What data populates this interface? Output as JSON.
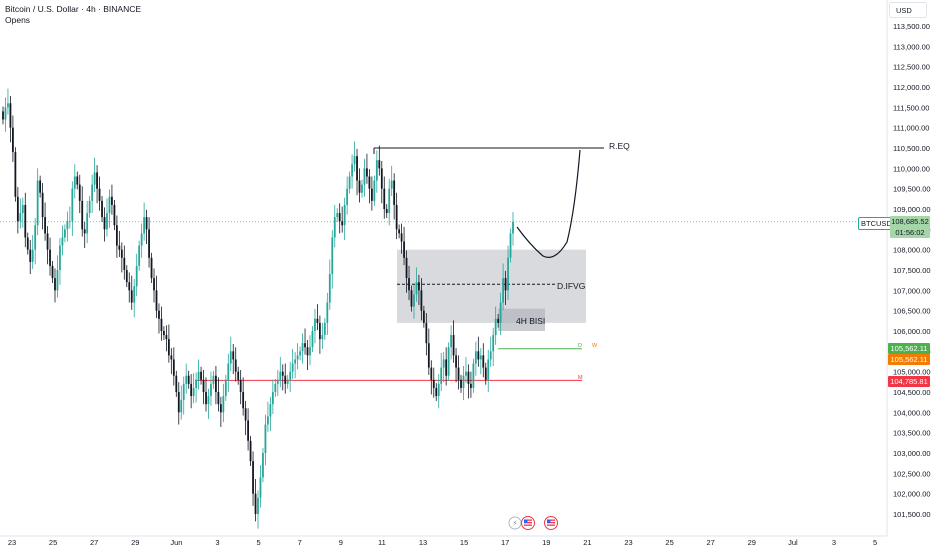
{
  "legend": {
    "title": "Bitcoin / U.S. Dollar · 4h · BINANCE",
    "subtitle": "Opens"
  },
  "axis": {
    "currency": "USD",
    "price_ticks": [
      "113,500.00",
      "113,000.00",
      "112,500.00",
      "112,000.00",
      "111,500.00",
      "111,000.00",
      "110,500.00",
      "110,000.00",
      "109,500.00",
      "109,000.00",
      "108,500.00",
      "108,000.00",
      "107,500.00",
      "107,000.00",
      "106,500.00",
      "106,000.00",
      "105,500.00",
      "105,000.00",
      "104,500.00",
      "104,000.00",
      "103,500.00",
      "103,000.00",
      "102,500.00",
      "102,000.00",
      "101,500.00"
    ],
    "date_ticks": [
      "23",
      "25",
      "27",
      "29",
      "Jun",
      "3",
      "5",
      "7",
      "9",
      "11",
      "13",
      "15",
      "17",
      "19",
      "21",
      "23",
      "25",
      "27",
      "29",
      "Jul",
      "3",
      "5"
    ]
  },
  "price_labels": {
    "ticker": "BTCUSD",
    "last_price": "108,685.52",
    "countdown": "01:56:02",
    "green_level": "105,562.11",
    "orange_level": "105,562.11",
    "red_level": "104,785.81"
  },
  "colors": {
    "up": "#26a69a",
    "down": "#131722",
    "zone_fill": "#b2b5be",
    "green_line": "#4caf50",
    "orange": "#f57c00",
    "red": "#f23645"
  },
  "annotations": {
    "req_label": "R.EQ",
    "dfvg_label": "D.IFVG",
    "bisi_label": "4H BISI",
    "d_label": "D",
    "w_label": "W",
    "m_label": "M"
  },
  "chart_data": {
    "type": "candlestick",
    "title": "Bitcoin / U.S. Dollar · 4h · BINANCE",
    "ylabel": "USD",
    "ylim": [
      101300,
      113800
    ],
    "x_ticks": [
      "23",
      "25",
      "27",
      "29",
      "Jun",
      "3",
      "5",
      "7",
      "9",
      "11",
      "13",
      "15",
      "17",
      "19",
      "21",
      "23",
      "25",
      "27",
      "29",
      "Jul",
      "3",
      "5"
    ],
    "levels": {
      "req": 110500,
      "dfvg_zone": [
        106200,
        108000
      ],
      "dfvg_mid": 107150,
      "bisi_zone": [
        106000,
        106550
      ],
      "daily_open": 105562.11,
      "monthly_open": 104785.81,
      "last_price": 108685.52
    },
    "closes": [
      111200,
      111500,
      111600,
      111000,
      110400,
      109300,
      108700,
      108900,
      109100,
      108300,
      108000,
      107700,
      108000,
      108600,
      109700,
      109400,
      108800,
      108400,
      108000,
      107600,
      107300,
      107000,
      107500,
      108100,
      108300,
      108500,
      108700,
      108700,
      109500,
      109800,
      109600,
      109200,
      108500,
      108400,
      108900,
      109200,
      109600,
      109900,
      109500,
      109200,
      108800,
      108500,
      108900,
      109300,
      109100,
      108600,
      108100,
      108000,
      107800,
      107500,
      107200,
      107000,
      106700,
      107100,
      107600,
      108100,
      108400,
      108800,
      108500,
      107800,
      107300,
      107000,
      106500,
      106300,
      106000,
      105900,
      105800,
      105400,
      105300,
      104900,
      104500,
      104000,
      104300,
      104700,
      104900,
      104700,
      104400,
      104600,
      104800,
      105000,
      104800,
      104500,
      104200,
      104400,
      104700,
      104900,
      104500,
      104200,
      104000,
      104400,
      104800,
      105200,
      105500,
      105300,
      105000,
      104800,
      104500,
      104100,
      103800,
      103300,
      102800,
      102000,
      101500,
      101900,
      102400,
      103000,
      103700,
      103900,
      104200,
      104500,
      104700,
      104800,
      105000,
      104900,
      104700,
      104800,
      105000,
      105200,
      105300,
      105400,
      105500,
      105700,
      105600,
      105400,
      105600,
      106000,
      106300,
      106200,
      105800,
      105900,
      106200,
      106700,
      107400,
      108300,
      108800,
      108900,
      108700,
      108600,
      109100,
      109500,
      109800,
      110100,
      110300,
      109700,
      109400,
      109600,
      110000,
      109800,
      109500,
      109200,
      109700,
      110200,
      110000,
      109500,
      109000,
      108900,
      109500,
      109700,
      109100,
      108500,
      108400,
      108200,
      107800,
      107300,
      107000,
      106600,
      106900,
      107200,
      107000,
      106500,
      106200,
      105700,
      105100,
      104800,
      104600,
      104400,
      104700,
      105100,
      105300,
      104900,
      105600,
      105900,
      105400,
      105100,
      104800,
      104600,
      104900,
      105000,
      104700,
      104600,
      105200,
      105500,
      105300,
      105400,
      105100,
      104800,
      105300,
      105500,
      105900,
      106300,
      106200,
      106700,
      107300,
      107000,
      107800,
      108400,
      108685
    ]
  }
}
